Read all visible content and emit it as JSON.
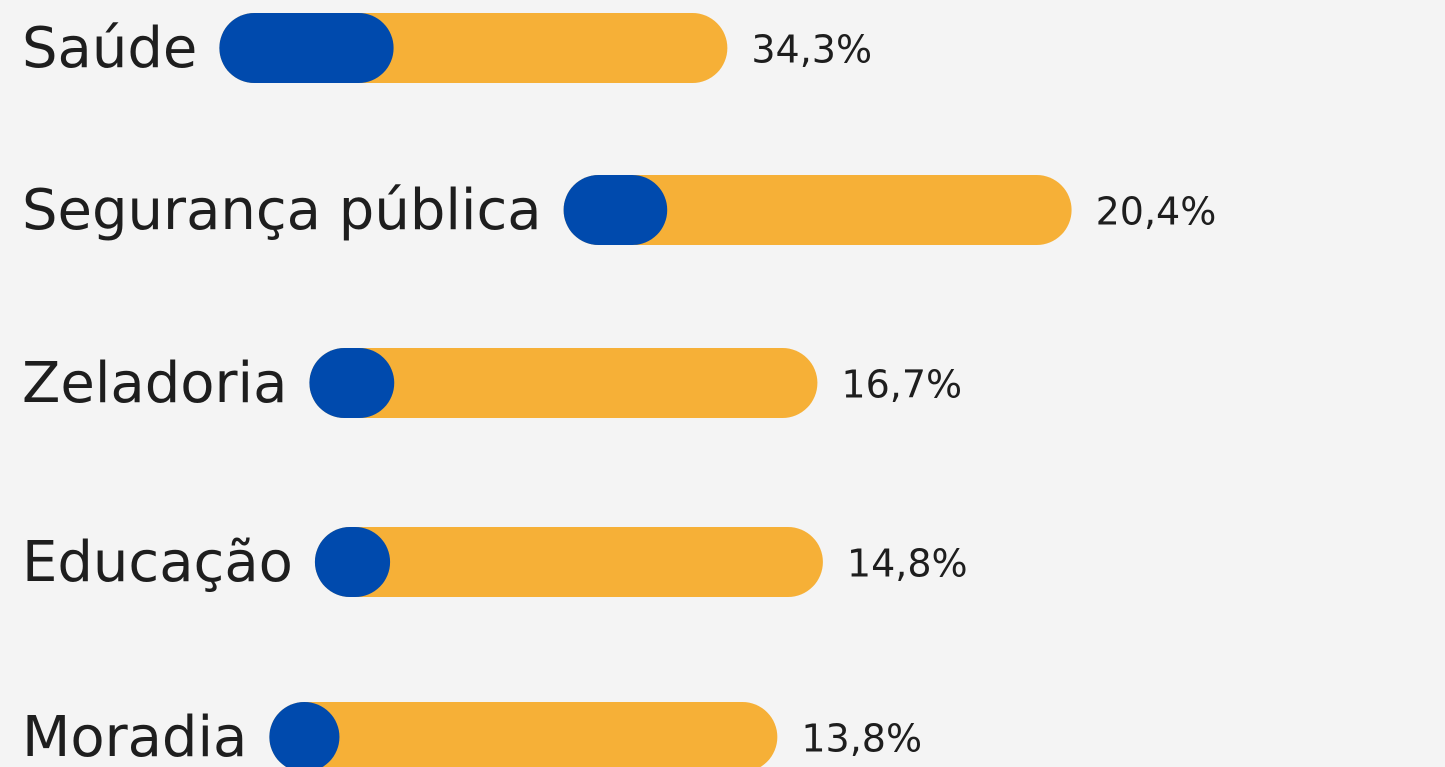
{
  "chart_data": {
    "type": "bar",
    "categories": [
      "Saúde",
      "Segurança pública",
      "Zeladoria",
      "Educação",
      "Moradia"
    ],
    "values": [
      34.3,
      20.4,
      16.7,
      14.8,
      13.8
    ],
    "value_labels": [
      "34,3%",
      "20,4%",
      "16,7%",
      "14,8%",
      "13,8%"
    ],
    "xlim": [
      0,
      100
    ],
    "color": "#004aad",
    "track_color": "#f6b037"
  }
}
